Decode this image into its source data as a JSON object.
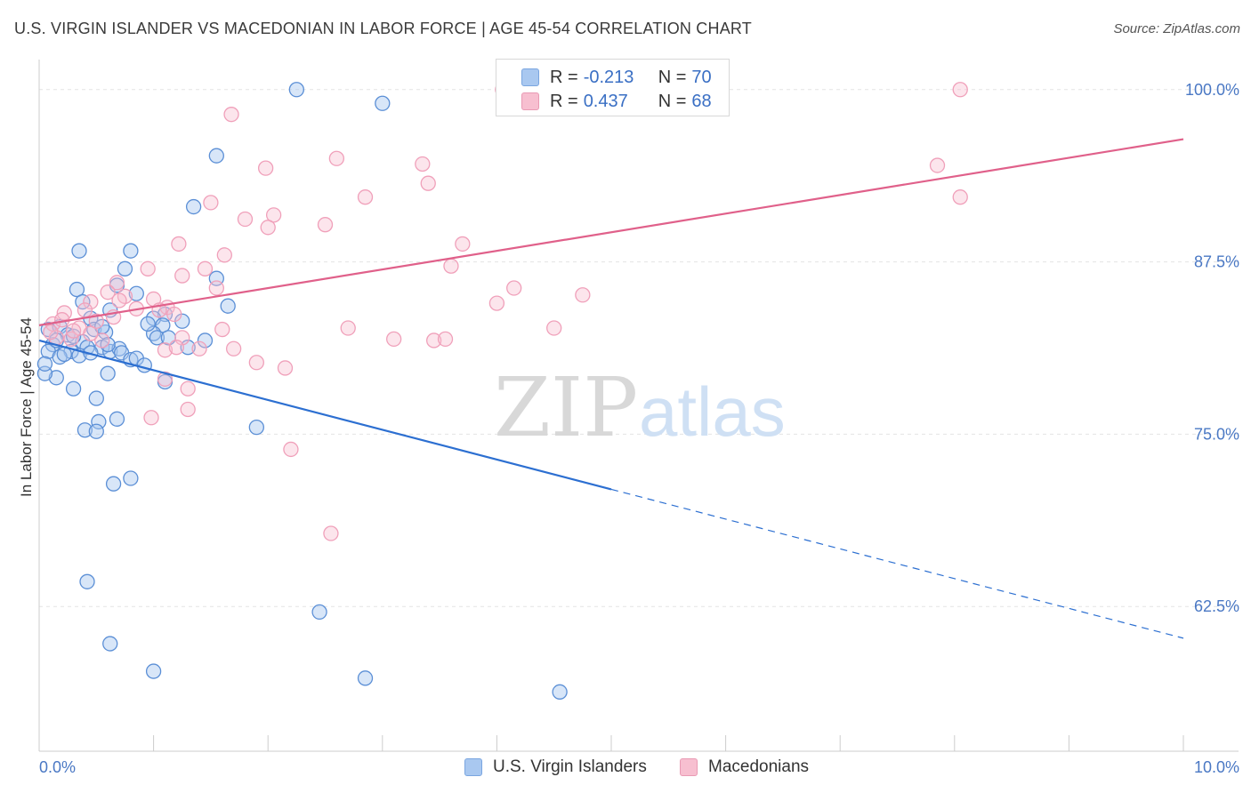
{
  "header": {
    "title": "U.S. VIRGIN ISLANDER VS MACEDONIAN IN LABOR FORCE | AGE 45-54 CORRELATION CHART",
    "source": "Source: ZipAtlas.com"
  },
  "watermark": {
    "zip": "ZIP",
    "atlas": "atlas"
  },
  "legend": {
    "rows": [
      {
        "r_label": "R =",
        "r_value": "-0.213",
        "n_label": "N =",
        "n_value": "70",
        "color": "#a9c8f0",
        "border": "#7aa6e0"
      },
      {
        "r_label": "R =",
        "r_value": "0.437",
        "n_label": "N =",
        "n_value": "68",
        "color": "#f7bfd0",
        "border": "#e99ab4"
      }
    ]
  },
  "colors": {
    "blue": "#5b8fd6",
    "blue_line": "#2c6fd1",
    "pink": "#f0a0ba",
    "pink_line": "#e0608a",
    "tick_text": "#4a78c4"
  },
  "chart_data": {
    "type": "scatter",
    "title": "U.S. VIRGIN ISLANDER VS MACEDONIAN IN LABOR FORCE | AGE 45-54 CORRELATION CHART",
    "xlabel": "",
    "ylabel": "In Labor Force | Age 45-54",
    "xlim": [
      0,
      10
    ],
    "ylim": [
      52,
      102.5
    ],
    "x_tick_labels": [
      "0.0%",
      "10.0%"
    ],
    "y_ticks": [
      62.5,
      75.0,
      87.5,
      100.0
    ],
    "y_tick_labels": [
      "62.5%",
      "75.0%",
      "87.5%",
      "100.0%"
    ],
    "grid": true,
    "legend_position": "bottom",
    "series": [
      {
        "name": "U.S. Virgin Islanders",
        "trend": {
          "x": [
            0.0,
            5.0
          ],
          "y": [
            81.8,
            71.0
          ],
          "dashed_to": [
            10.0,
            60.2
          ]
        },
        "points": [
          [
            2.25,
            100.0
          ],
          [
            3.0,
            99.0
          ],
          [
            1.55,
            95.2
          ],
          [
            1.35,
            91.5
          ],
          [
            0.35,
            88.3
          ],
          [
            0.8,
            88.3
          ],
          [
            0.75,
            87.0
          ],
          [
            1.55,
            86.3
          ],
          [
            0.68,
            85.8
          ],
          [
            0.85,
            85.2
          ],
          [
            0.33,
            85.5
          ],
          [
            0.38,
            84.6
          ],
          [
            0.62,
            84.0
          ],
          [
            0.45,
            83.4
          ],
          [
            1.1,
            83.7
          ],
          [
            1.65,
            84.3
          ],
          [
            1.0,
            83.4
          ],
          [
            1.08,
            82.9
          ],
          [
            0.48,
            82.6
          ],
          [
            0.08,
            82.6
          ],
          [
            0.18,
            82.8
          ],
          [
            0.58,
            82.4
          ],
          [
            0.25,
            82.2
          ],
          [
            0.38,
            81.7
          ],
          [
            1.0,
            82.3
          ],
          [
            1.03,
            82.0
          ],
          [
            1.13,
            82.0
          ],
          [
            0.12,
            81.5
          ],
          [
            0.28,
            81.0
          ],
          [
            0.42,
            81.3
          ],
          [
            0.08,
            81.0
          ],
          [
            0.18,
            80.6
          ],
          [
            0.55,
            81.3
          ],
          [
            0.62,
            81.0
          ],
          [
            0.35,
            80.7
          ],
          [
            0.7,
            81.2
          ],
          [
            0.72,
            80.9
          ],
          [
            0.8,
            80.4
          ],
          [
            0.85,
            80.5
          ],
          [
            0.92,
            80.0
          ],
          [
            1.3,
            81.3
          ],
          [
            1.45,
            81.8
          ],
          [
            0.6,
            79.4
          ],
          [
            0.15,
            79.1
          ],
          [
            0.05,
            79.4
          ],
          [
            0.3,
            78.3
          ],
          [
            0.5,
            77.6
          ],
          [
            1.1,
            78.8
          ],
          [
            0.52,
            75.9
          ],
          [
            0.68,
            76.1
          ],
          [
            0.4,
            75.3
          ],
          [
            0.5,
            75.2
          ],
          [
            1.9,
            75.5
          ],
          [
            0.8,
            71.8
          ],
          [
            0.65,
            71.4
          ],
          [
            0.42,
            64.3
          ],
          [
            0.62,
            59.8
          ],
          [
            2.45,
            62.1
          ],
          [
            1.0,
            57.8
          ],
          [
            2.85,
            57.3
          ],
          [
            4.55,
            56.3
          ],
          [
            0.05,
            80.1
          ],
          [
            0.15,
            81.8
          ],
          [
            0.3,
            82.1
          ],
          [
            0.55,
            82.8
          ],
          [
            0.6,
            81.5
          ],
          [
            0.45,
            80.9
          ],
          [
            0.22,
            80.8
          ],
          [
            1.25,
            83.2
          ],
          [
            0.95,
            83.0
          ]
        ]
      },
      {
        "name": "Macedonians",
        "trend": {
          "x": [
            0.0,
            10.0
          ],
          "y": [
            82.9,
            96.4
          ]
        },
        "points": [
          [
            4.05,
            100.0
          ],
          [
            8.05,
            100.0
          ],
          [
            1.68,
            98.2
          ],
          [
            2.6,
            95.0
          ],
          [
            3.35,
            94.6
          ],
          [
            1.98,
            94.3
          ],
          [
            7.85,
            94.5
          ],
          [
            3.4,
            93.2
          ],
          [
            8.05,
            92.2
          ],
          [
            2.85,
            92.2
          ],
          [
            1.5,
            91.8
          ],
          [
            2.05,
            90.9
          ],
          [
            1.8,
            90.6
          ],
          [
            2.5,
            90.2
          ],
          [
            2.0,
            90.0
          ],
          [
            1.22,
            88.8
          ],
          [
            3.7,
            88.8
          ],
          [
            1.62,
            88.0
          ],
          [
            3.6,
            87.2
          ],
          [
            0.95,
            87.0
          ],
          [
            1.45,
            87.0
          ],
          [
            1.25,
            86.5
          ],
          [
            0.68,
            86.0
          ],
          [
            1.55,
            85.6
          ],
          [
            4.15,
            85.6
          ],
          [
            0.6,
            85.3
          ],
          [
            0.75,
            85.0
          ],
          [
            4.75,
            85.1
          ],
          [
            1.0,
            84.8
          ],
          [
            0.45,
            84.6
          ],
          [
            1.12,
            84.2
          ],
          [
            1.05,
            84.0
          ],
          [
            1.18,
            83.7
          ],
          [
            4.0,
            84.5
          ],
          [
            0.4,
            84.0
          ],
          [
            0.65,
            83.5
          ],
          [
            0.22,
            83.8
          ],
          [
            0.5,
            83.2
          ],
          [
            0.12,
            83.0
          ],
          [
            0.35,
            82.7
          ],
          [
            1.6,
            82.6
          ],
          [
            2.7,
            82.7
          ],
          [
            4.5,
            82.7
          ],
          [
            0.15,
            82.0
          ],
          [
            0.28,
            81.9
          ],
          [
            0.55,
            81.8
          ],
          [
            1.25,
            82.0
          ],
          [
            3.1,
            81.9
          ],
          [
            3.45,
            81.8
          ],
          [
            3.55,
            81.9
          ],
          [
            1.4,
            81.2
          ],
          [
            1.7,
            81.2
          ],
          [
            1.1,
            81.1
          ],
          [
            1.2,
            81.3
          ],
          [
            1.9,
            80.2
          ],
          [
            2.15,
            79.8
          ],
          [
            1.1,
            79.0
          ],
          [
            1.3,
            78.3
          ],
          [
            1.3,
            76.8
          ],
          [
            0.98,
            76.2
          ],
          [
            2.2,
            73.9
          ],
          [
            2.55,
            67.8
          ],
          [
            0.1,
            82.4
          ],
          [
            0.85,
            84.1
          ],
          [
            0.2,
            83.3
          ],
          [
            0.45,
            82.3
          ],
          [
            0.7,
            84.7
          ],
          [
            0.3,
            82.5
          ]
        ]
      }
    ]
  }
}
